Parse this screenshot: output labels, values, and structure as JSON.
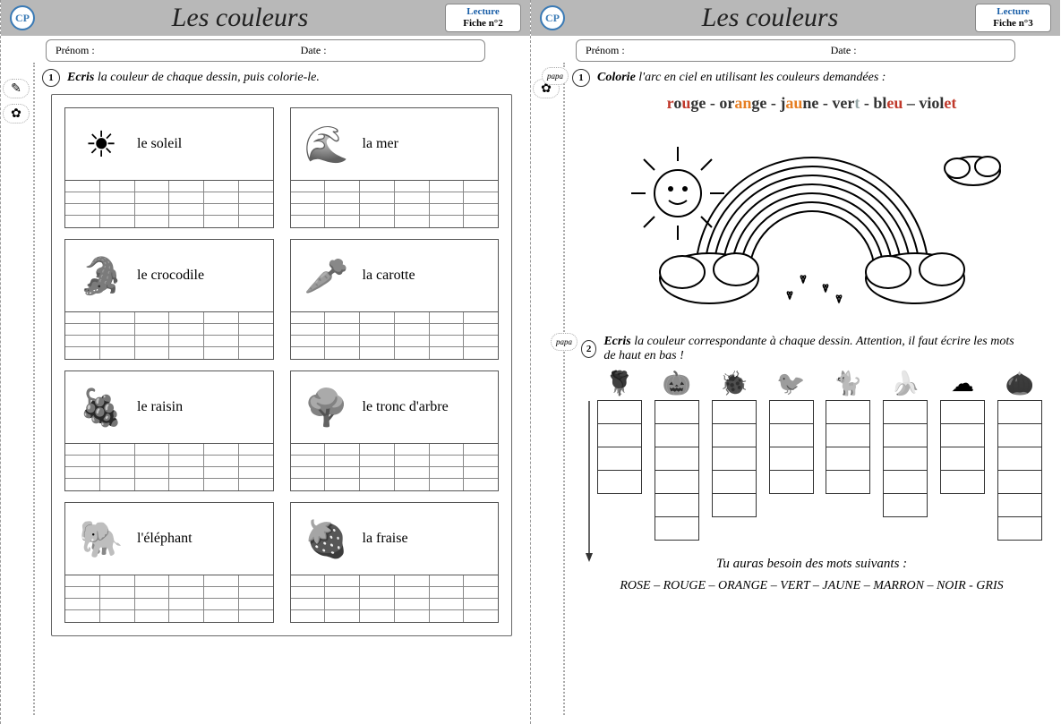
{
  "common": {
    "cp_label": "CP",
    "title": "Les couleurs",
    "lecture": "Lecture",
    "prenom_label": "Prénom :",
    "date_label": "Date :"
  },
  "sheet2": {
    "fiche": "Fiche n°2",
    "instruction_prefix": "Ecris",
    "instruction_rest": " la couleur de chaque dessin, puis colorie-le.",
    "num": "1",
    "cards": [
      {
        "label": "le soleil",
        "glyph": "☀"
      },
      {
        "label": "la mer",
        "glyph": "🌊"
      },
      {
        "label": "le crocodile",
        "glyph": "🐊"
      },
      {
        "label": "la carotte",
        "glyph": "🥕"
      },
      {
        "label": "le raisin",
        "glyph": "🍇"
      },
      {
        "label": "le tronc d'arbre",
        "glyph": "🌳"
      },
      {
        "label": "l'éléphant",
        "glyph": "🐘"
      },
      {
        "label": "la fraise",
        "glyph": "🍓"
      }
    ],
    "write_rows": 4,
    "write_cols": 6
  },
  "sheet3": {
    "fiche": "Fiche n°3",
    "ex1_num": "1",
    "ex1_prefix": "Colorie",
    "ex1_rest": " l'arc en ciel en utilisant les couleurs demandées :",
    "colorwords": [
      {
        "parts": [
          [
            "r",
            "#c0392b"
          ],
          [
            "o",
            "#333"
          ],
          [
            "u",
            "#c0392b"
          ],
          [
            "ge",
            "#333"
          ]
        ]
      },
      {
        "parts": [
          [
            "or",
            "#333"
          ],
          [
            "an",
            "#e67e22"
          ],
          [
            "ge",
            "#333"
          ]
        ]
      },
      {
        "parts": [
          [
            "j",
            "#333"
          ],
          [
            "au",
            "#e67e22"
          ],
          [
            "ne",
            "#333"
          ]
        ]
      },
      {
        "parts": [
          [
            "ver",
            "#333"
          ],
          [
            "t",
            "#95a5a6"
          ]
        ]
      },
      {
        "parts": [
          [
            "bl",
            "#333"
          ],
          [
            "eu",
            "#c0392b"
          ]
        ]
      },
      {
        "parts": [
          [
            "viol",
            "#333"
          ],
          [
            "et",
            "#c0392b"
          ]
        ]
      }
    ],
    "colorwords_sep": " - ",
    "colorwords_lastsep": " – ",
    "ex2_num": "2",
    "ex2_prefix": "Ecris",
    "ex2_rest": " la couleur correspondante à chaque dessin. Attention, il faut écrire les mots de haut en bas !",
    "columns": [
      {
        "glyph": "🌹",
        "cells": 4
      },
      {
        "glyph": "🎃",
        "cells": 6
      },
      {
        "glyph": "🐞",
        "cells": 5
      },
      {
        "glyph": "🐦",
        "cells": 4
      },
      {
        "glyph": "🐈",
        "cells": 4
      },
      {
        "glyph": "🍌",
        "cells": 5
      },
      {
        "glyph": "☁",
        "cells": 4
      },
      {
        "glyph": "🌰",
        "cells": 6
      }
    ],
    "footer1": "Tu auras besoin des mots suivants :",
    "footer2": "ROSE – ROUGE – ORANGE – VERT – JAUNE – MARRON – NOIR - GRIS"
  }
}
